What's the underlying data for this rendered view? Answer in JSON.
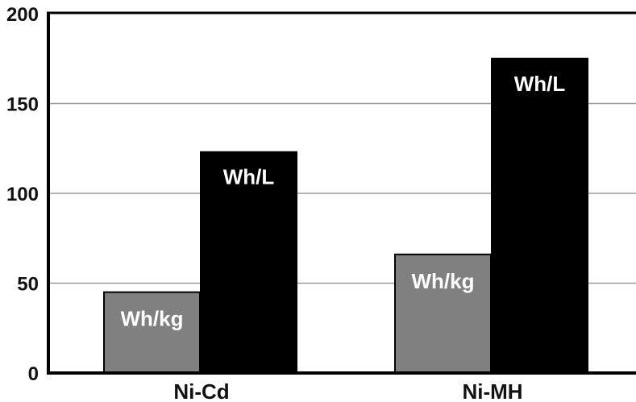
{
  "chart_data": {
    "type": "bar",
    "title": "",
    "xlabel": "",
    "ylabel": "",
    "categories": [
      "Ni-Cd",
      "Ni-MH"
    ],
    "series": [
      {
        "name": "Wh/kg",
        "values": [
          45,
          66
        ],
        "color": "#808080"
      },
      {
        "name": "Wh/L",
        "values": [
          123,
          175
        ],
        "color": "#000000"
      }
    ],
    "ylim": [
      0,
      200
    ],
    "yticks": [
      "0",
      "50",
      "100",
      "150",
      "200"
    ],
    "grid": true,
    "legend": "none",
    "bar_labels": "series name inside each bar"
  }
}
